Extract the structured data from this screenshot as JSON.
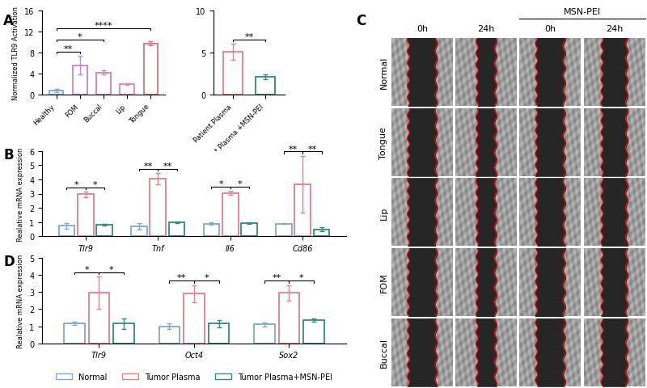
{
  "chart_data": [
    {
      "type": "bar",
      "y_label": "Normalized TLR9 Activation",
      "categories": [
        "Healthy",
        "FOM",
        "Buccal",
        "Lip",
        "Tongue"
      ],
      "values": [
        0.8,
        5.6,
        4.2,
        2.0,
        9.8
      ],
      "errors": [
        0.3,
        1.8,
        0.4,
        0.1,
        0.4
      ],
      "colors": [
        "#7ea6d9",
        "#c585c8",
        "#d27fb4",
        "#e08aa8",
        "#d9707f"
      ],
      "ylim": [
        0,
        16
      ],
      "yticks": [
        0,
        4,
        8,
        12,
        16
      ],
      "significance": [
        {
          "from": "Healthy",
          "to": "FOM",
          "text": "**"
        },
        {
          "from": "Healthy",
          "to": "Buccal",
          "text": "*"
        },
        {
          "from": "Healthy",
          "to": "Tongue",
          "text": "****"
        }
      ]
    },
    {
      "type": "bar",
      "categories": [
        "Patient Plasma",
        "Patient Plasma +MSN-PEI"
      ],
      "values": [
        5.1,
        2.1
      ],
      "errors": [
        1.0,
        0.3
      ],
      "colors": [
        "#e0808f",
        "#2e8b7f"
      ],
      "ylim": [
        0,
        10
      ],
      "yticks": [
        0,
        5,
        10
      ],
      "significance": [
        {
          "from": "Patient Plasma",
          "to": "Patient Plasma +MSN-PEI",
          "text": "**"
        }
      ]
    },
    {
      "type": "grouped_bar",
      "y_label": "Realative mRNA expression",
      "categories": [
        "Tlr9",
        "Tnf",
        "Il6",
        "Cd86"
      ],
      "series": [
        {
          "name": "Normal",
          "color": "#7ea6d9",
          "values": [
            0.75,
            0.7,
            0.9,
            0.9
          ],
          "errors": [
            0.2,
            0.25,
            0.1,
            0.05
          ]
        },
        {
          "name": "Tumor Plasma",
          "color": "#e0808f",
          "values": [
            2.95,
            4.05,
            3.05,
            3.65
          ],
          "errors": [
            0.2,
            0.4,
            0.15,
            2.0
          ]
        },
        {
          "name": "Tumor Plasma+MSN-PEI",
          "color": "#2e8b7f",
          "values": [
            0.8,
            1.0,
            0.95,
            0.5
          ],
          "errors": [
            0.05,
            0.05,
            0.05,
            0.15
          ]
        }
      ],
      "ylim": [
        0,
        6
      ],
      "yticks": [
        0,
        1,
        2,
        3,
        4,
        5,
        6
      ],
      "significance": [
        {
          "category": "Tlr9",
          "from": "Normal",
          "to": "Tumor Plasma",
          "text": "*"
        },
        {
          "category": "Tlr9",
          "from": "Tumor Plasma",
          "to": "Tumor Plasma+MSN-PEI",
          "text": "*"
        },
        {
          "category": "Tnf",
          "from": "Normal",
          "to": "Tumor Plasma",
          "text": "**"
        },
        {
          "category": "Tnf",
          "from": "Tumor Plasma",
          "to": "Tumor Plasma+MSN-PEI",
          "text": "**"
        },
        {
          "category": "Il6",
          "from": "Normal",
          "to": "Tumor Plasma",
          "text": "*"
        },
        {
          "category": "Il6",
          "from": "Tumor Plasma",
          "to": "Tumor Plasma+MSN-PEI",
          "text": "*"
        },
        {
          "category": "Cd86",
          "from": "Normal",
          "to": "Tumor Plasma",
          "text": "**"
        },
        {
          "category": "Cd86",
          "from": "Tumor Plasma",
          "to": "Tumor Plasma+MSN-PEI",
          "text": "**"
        }
      ]
    },
    {
      "type": "grouped_bar",
      "y_label": "Realative mRNA expression",
      "categories": [
        "Tlr9",
        "Oct4",
        "Sox2"
      ],
      "series": [
        {
          "name": "Normal",
          "color": "#7ea6d9",
          "values": [
            1.15,
            1.0,
            1.1
          ],
          "errors": [
            0.1,
            0.15,
            0.1
          ]
        },
        {
          "name": "Tumor Plasma",
          "color": "#e0808f",
          "values": [
            2.95,
            2.9,
            2.95
          ],
          "errors": [
            0.95,
            0.5,
            0.45
          ]
        },
        {
          "name": "Tumor Plasma+MSN-PEI",
          "color": "#2e8b7f",
          "values": [
            1.15,
            1.15,
            1.35
          ],
          "errors": [
            0.3,
            0.2,
            0.1
          ]
        }
      ],
      "ylim": [
        0,
        5
      ],
      "yticks": [
        0,
        1,
        2,
        3,
        4,
        5
      ],
      "legend": "lower center",
      "significance": [
        {
          "category": "Tlr9",
          "from": "Normal",
          "to": "Tumor Plasma",
          "text": "*"
        },
        {
          "category": "Tlr9",
          "from": "Tumor Plasma",
          "to": "Tumor Plasma+MSN-PEI",
          "text": "*"
        },
        {
          "category": "Oct4",
          "from": "Normal",
          "to": "Tumor Plasma",
          "text": "**"
        },
        {
          "category": "Oct4",
          "from": "Tumor Plasma",
          "to": "Tumor Plasma+MSN-PEI",
          "text": "*"
        },
        {
          "category": "Sox2",
          "from": "Normal",
          "to": "Tumor Plasma",
          "text": "**"
        },
        {
          "category": "Sox2",
          "from": "Tumor Plasma",
          "to": "Tumor Plasma+MSN-PEI",
          "text": "*"
        }
      ]
    }
  ],
  "wound_healing_images": {
    "column_labels": [
      "0h",
      "24h",
      "0h",
      "24h"
    ],
    "group_label": "MSN-PEI",
    "row_labels": [
      "Normal",
      "Tongue",
      "Lip",
      "FOM",
      "Buccal"
    ]
  },
  "panel_labels": [
    "A",
    "B",
    "C",
    "D"
  ]
}
